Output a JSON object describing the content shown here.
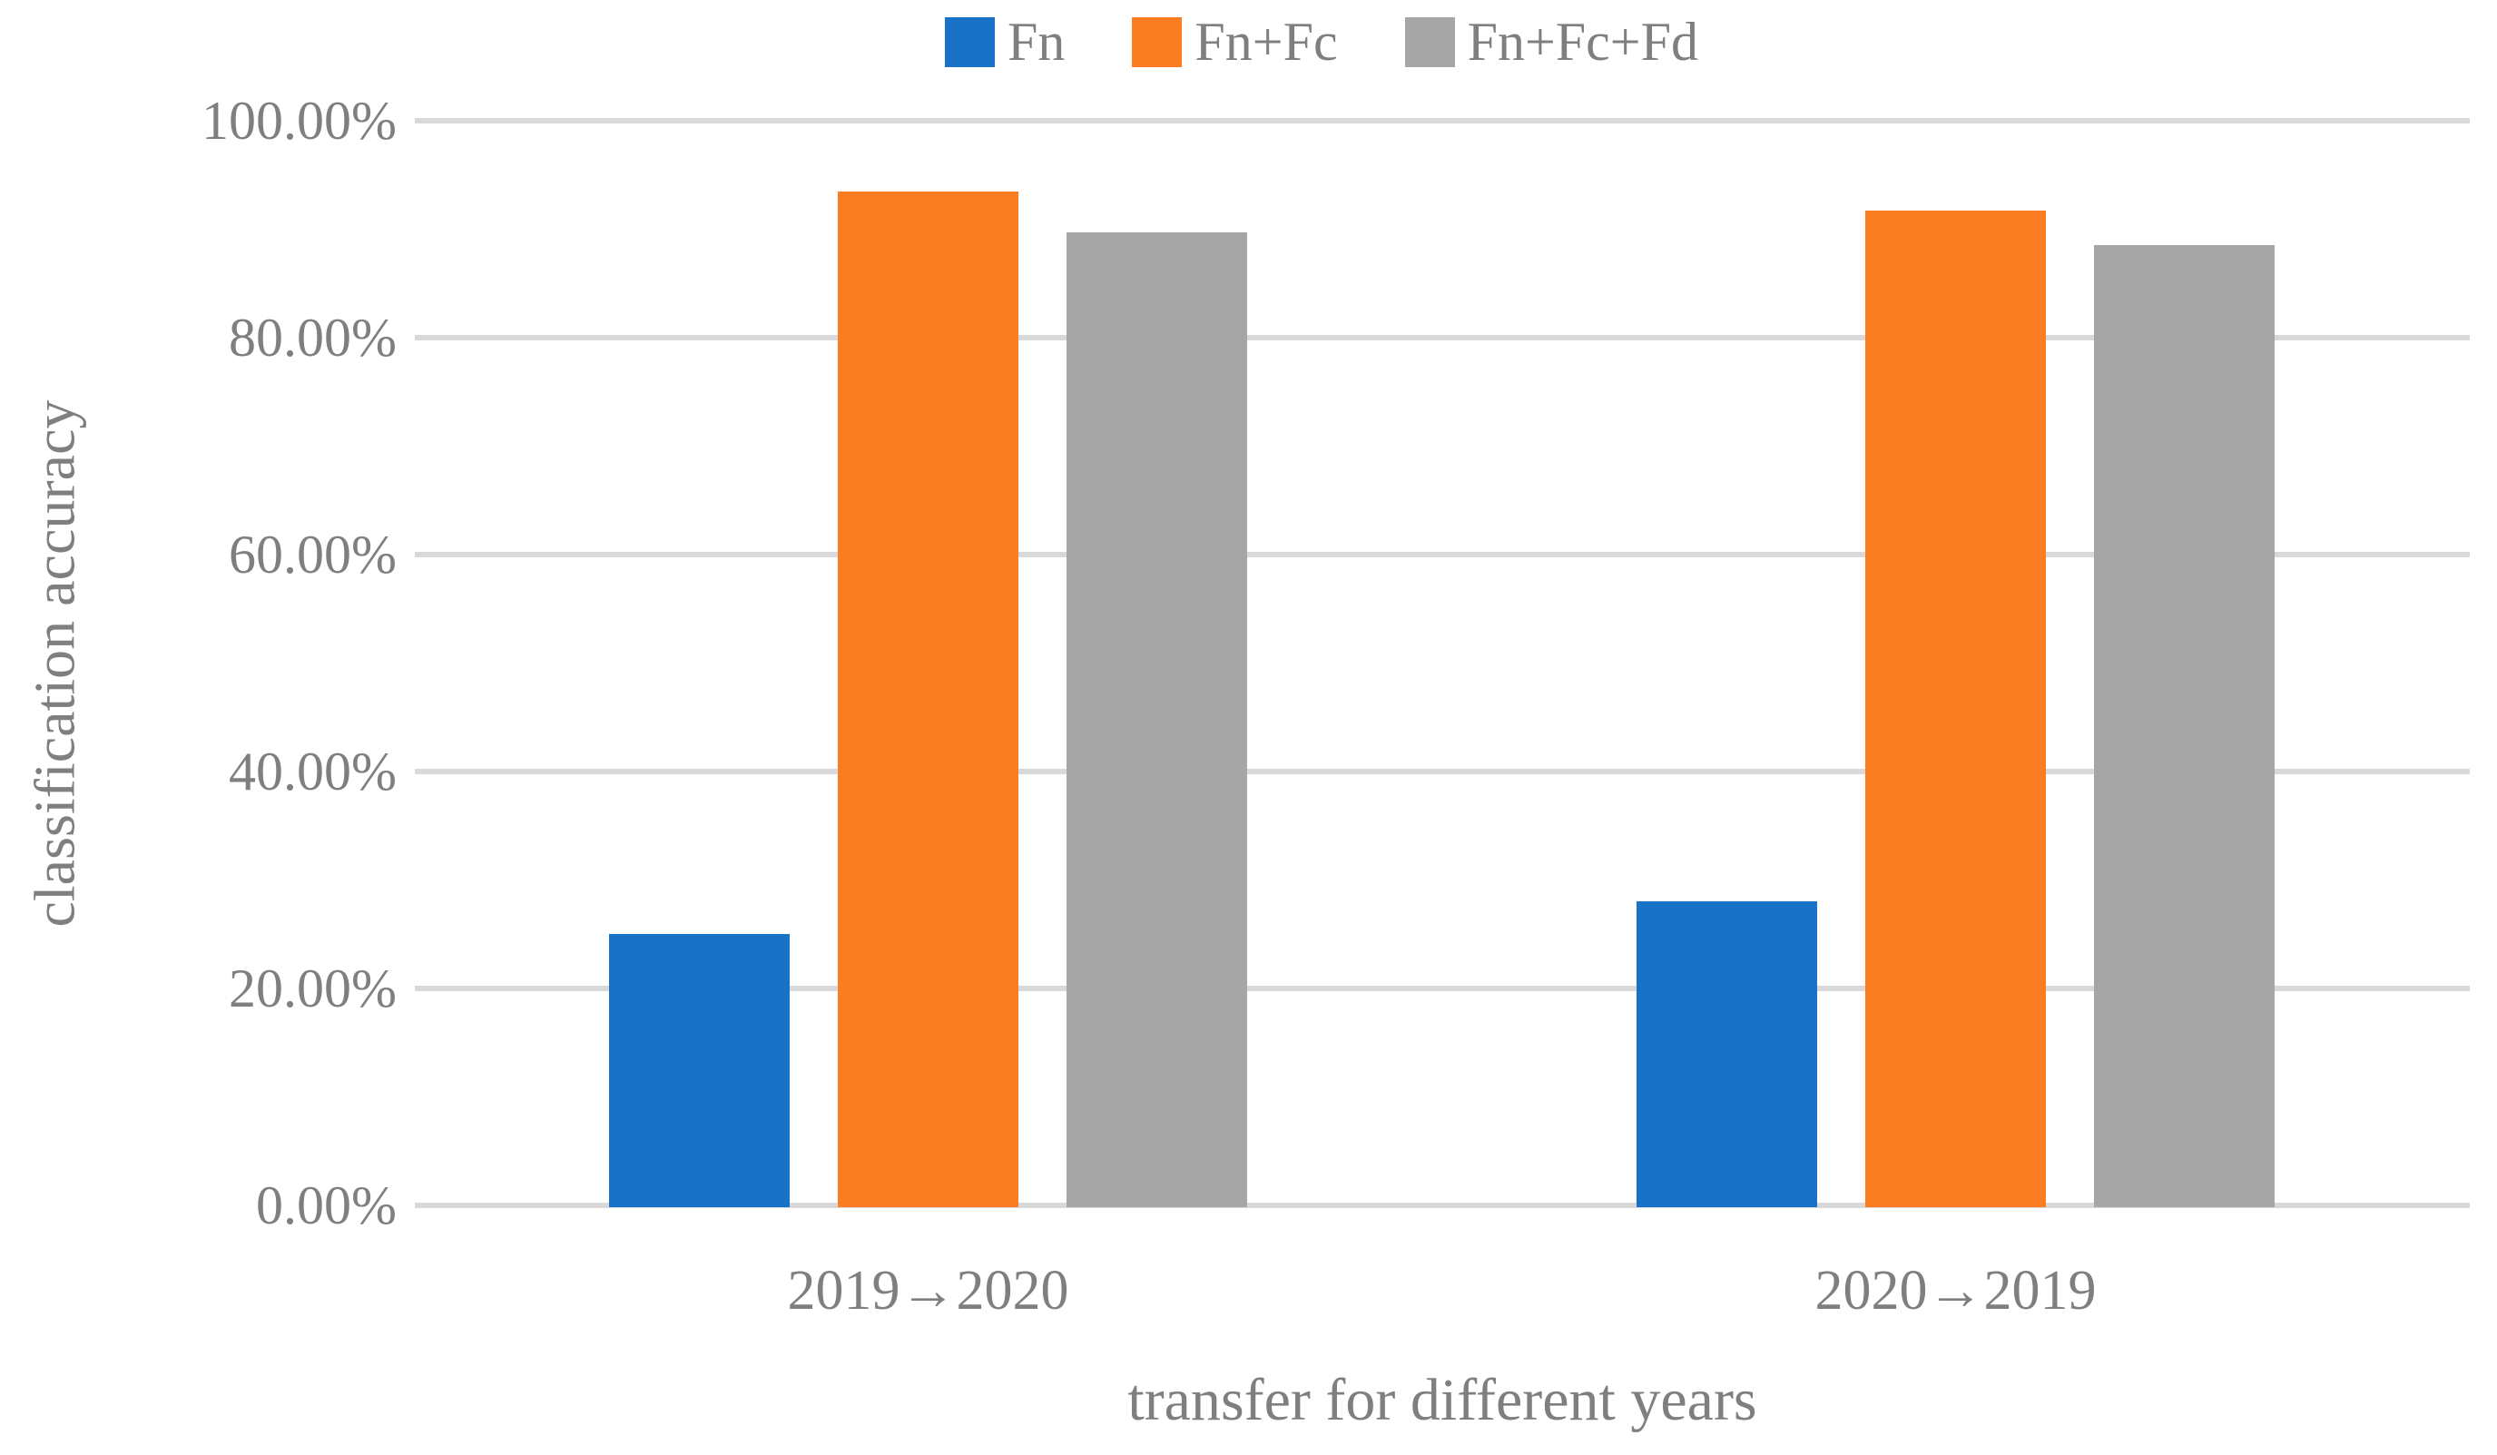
{
  "chart_data": {
    "type": "bar",
    "xlabel": "transfer for different years",
    "ylabel": "classification accuracy",
    "categories": [
      "2019→2020",
      "2020→2019"
    ],
    "series": [
      {
        "name": "Fn",
        "color": "#1872C8",
        "values": [
          25.0,
          28.0
        ]
      },
      {
        "name": "Fn+Fc",
        "color": "#FB7D22",
        "values": [
          93.5,
          91.7
        ]
      },
      {
        "name": "Fn+Fc+Fd",
        "color": "#A6A6A6",
        "values": [
          89.7,
          88.5
        ]
      }
    ],
    "y_ticks": [
      "100.00%",
      "80.00%",
      "60.00%",
      "40.00%",
      "20.00%",
      "0.00%"
    ],
    "ylim": [
      0,
      100
    ],
    "grid": true,
    "legend_position": "top"
  },
  "colors": {
    "gridline": "#D9D9D9",
    "axis_text": "#7F7F7F",
    "background": "#FFFFFF"
  }
}
